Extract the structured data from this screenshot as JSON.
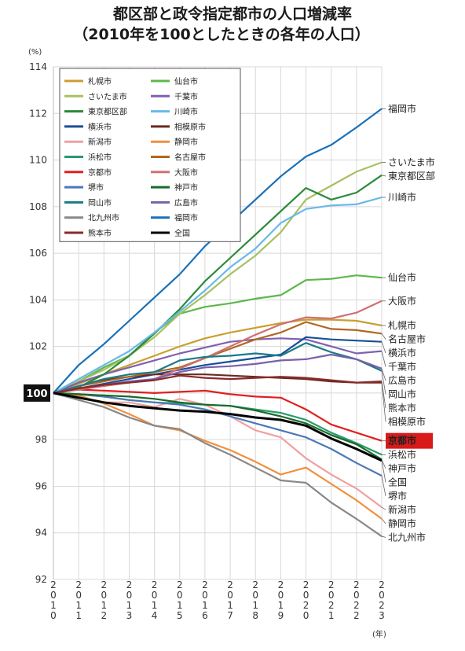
{
  "chart_data": {
    "type": "line",
    "title": "都区部と政令指定都市の人口増減率",
    "subtitle": "（2010年を100としたときの各年の人口）",
    "ylabel_unit": "(%)",
    "xlabel_unit": "(年)",
    "ylim": [
      92,
      114
    ],
    "yticks": [
      92,
      94,
      96,
      98,
      100,
      102,
      104,
      106,
      108,
      110,
      112,
      114
    ],
    "base_label": "100",
    "x": [
      2010,
      2011,
      2012,
      2013,
      2014,
      2015,
      2016,
      2017,
      2018,
      2019,
      2020,
      2021,
      2022,
      2023
    ],
    "x_tick_labels": [
      "2010",
      "2011",
      "2012",
      "2013",
      "2014",
      "2015",
      "2016",
      "2017",
      "2018",
      "2019",
      "2020",
      "2021",
      "2022",
      "2023"
    ],
    "grid": true,
    "legend_position": "top-left",
    "series": [
      {
        "name": "札幌市",
        "color": "#c8a030",
        "end_label": "札幌市",
        "values": [
          100,
          100.4,
          100.8,
          101.2,
          101.6,
          102.0,
          102.35,
          102.6,
          102.8,
          103.0,
          103.15,
          103.15,
          103.1,
          102.9
        ]
      },
      {
        "name": "仙台市",
        "color": "#5cb84a",
        "end_label": "仙台市",
        "values": [
          100,
          100.5,
          101.1,
          101.6,
          102.6,
          103.4,
          103.7,
          103.85,
          104.05,
          104.2,
          104.85,
          104.9,
          105.05,
          104.95
        ]
      },
      {
        "name": "さいたま市",
        "color": "#a8c060",
        "end_label": "さいたま市",
        "values": [
          100,
          100.5,
          101.0,
          101.6,
          102.4,
          103.4,
          104.2,
          105.1,
          105.9,
          106.9,
          108.3,
          108.9,
          109.5,
          109.9
        ]
      },
      {
        "name": "千葉市",
        "color": "#8060b0",
        "end_label": "千葉市",
        "values": [
          100,
          100.45,
          100.8,
          101.1,
          101.4,
          101.7,
          101.95,
          102.2,
          102.3,
          102.35,
          102.3,
          102.0,
          101.7,
          101.8
        ]
      },
      {
        "name": "東京都区部",
        "color": "#2a8a3a",
        "end_label": "東京都区部",
        "values": [
          100,
          100.25,
          100.8,
          101.6,
          102.55,
          103.6,
          104.8,
          105.8,
          106.8,
          107.8,
          108.8,
          108.3,
          108.6,
          109.35
        ]
      },
      {
        "name": "川崎市",
        "color": "#6ab8e8",
        "end_label": "川崎市",
        "values": [
          100,
          100.6,
          101.2,
          101.8,
          102.6,
          103.5,
          104.4,
          105.4,
          106.2,
          107.3,
          107.9,
          108.05,
          108.1,
          108.4
        ]
      },
      {
        "name": "横浜市",
        "color": "#1a4e98",
        "end_label": "横浜市",
        "values": [
          100,
          100.2,
          100.4,
          100.6,
          100.8,
          101.0,
          101.2,
          101.35,
          101.5,
          101.65,
          102.4,
          102.3,
          102.25,
          102.2
        ]
      },
      {
        "name": "相模原市",
        "color": "#6a2a20",
        "end_label": "相模原市",
        "values": [
          100,
          100.3,
          100.55,
          100.7,
          100.8,
          100.8,
          100.8,
          100.75,
          100.7,
          100.65,
          100.6,
          100.5,
          100.45,
          100.45
        ]
      },
      {
        "name": "新潟市",
        "color": "#f0a0a0",
        "end_label": "新潟市",
        "values": [
          100,
          99.85,
          99.6,
          99.6,
          99.4,
          99.75,
          99.5,
          99.0,
          98.4,
          98.1,
          97.2,
          96.5,
          95.9,
          95.1
        ]
      },
      {
        "name": "静岡市",
        "color": "#f09040",
        "end_label": "静岡市",
        "values": [
          100,
          99.9,
          99.55,
          99.1,
          98.6,
          98.4,
          97.95,
          97.55,
          97.05,
          96.5,
          96.8,
          96.1,
          95.4,
          94.6
        ]
      },
      {
        "name": "浜松市",
        "color": "#2a9a70",
        "end_label": "浜松市",
        "values": [
          100,
          99.95,
          99.85,
          99.7,
          99.6,
          99.55,
          99.5,
          99.45,
          99.3,
          99.15,
          98.85,
          98.3,
          97.85,
          97.35
        ]
      },
      {
        "name": "名古屋市",
        "color": "#b06820",
        "end_label": "名古屋市",
        "values": [
          100,
          100.3,
          100.5,
          100.7,
          100.9,
          101.1,
          101.5,
          101.9,
          102.3,
          102.6,
          103.05,
          102.75,
          102.7,
          102.55
        ]
      },
      {
        "name": "京都市",
        "color": "#e02020",
        "end_label": "京都市",
        "values": [
          100,
          100.15,
          100.1,
          100.05,
          100.0,
          100.05,
          100.1,
          99.95,
          99.85,
          99.8,
          99.3,
          98.65,
          98.3,
          97.95
        ]
      },
      {
        "name": "大阪市",
        "color": "#d07070",
        "end_label": "大阪市",
        "values": [
          100,
          100.15,
          100.3,
          100.45,
          100.6,
          101.05,
          101.5,
          102.0,
          102.5,
          102.95,
          103.25,
          103.2,
          103.45,
          103.95
        ]
      },
      {
        "name": "堺市",
        "color": "#4a78b8",
        "end_label": "堺市",
        "values": [
          100,
          99.95,
          99.85,
          99.7,
          99.6,
          99.5,
          99.3,
          99.0,
          98.7,
          98.4,
          98.1,
          97.6,
          97.0,
          96.45
        ]
      },
      {
        "name": "神戸市",
        "color": "#1a6a2a",
        "end_label": "神戸市",
        "values": [
          100,
          99.95,
          99.9,
          99.85,
          99.75,
          99.6,
          99.5,
          99.45,
          99.25,
          99.0,
          98.7,
          98.2,
          97.8,
          97.15
        ]
      },
      {
        "name": "岡山市",
        "color": "#1a7a88",
        "end_label": "岡山市",
        "values": [
          100,
          100.3,
          100.6,
          100.8,
          100.9,
          101.4,
          101.55,
          101.6,
          101.7,
          101.6,
          102.15,
          101.75,
          101.45,
          100.95
        ]
      },
      {
        "name": "広島市",
        "color": "#7a60a8",
        "end_label": "広島市",
        "values": [
          100,
          100.2,
          100.35,
          100.5,
          100.6,
          100.9,
          101.1,
          101.15,
          101.25,
          101.4,
          101.45,
          101.65,
          101.45,
          101.05
        ]
      },
      {
        "name": "北九州市",
        "color": "#888888",
        "end_label": "北九州市",
        "values": [
          100,
          99.7,
          99.4,
          98.95,
          98.6,
          98.45,
          97.85,
          97.35,
          96.8,
          96.25,
          96.15,
          95.3,
          94.6,
          93.85
        ]
      },
      {
        "name": "福岡市",
        "color": "#1a70b8",
        "end_label": "福岡市",
        "values": [
          100,
          101.2,
          102.1,
          103.1,
          104.1,
          105.1,
          106.3,
          107.3,
          108.3,
          109.3,
          110.15,
          110.65,
          111.4,
          112.2
        ]
      },
      {
        "name": "熊本市",
        "color": "#8a2a2a",
        "end_label": "熊本市",
        "values": [
          100,
          100.2,
          100.35,
          100.45,
          100.55,
          100.75,
          100.65,
          100.6,
          100.65,
          100.7,
          100.65,
          100.55,
          100.45,
          100.5
        ]
      },
      {
        "name": "全国",
        "color": "#000000",
        "end_label": "全国",
        "values": [
          100,
          99.8,
          99.6,
          99.45,
          99.35,
          99.25,
          99.2,
          99.1,
          98.95,
          98.85,
          98.6,
          98.05,
          97.6,
          97.1
        ]
      }
    ]
  }
}
